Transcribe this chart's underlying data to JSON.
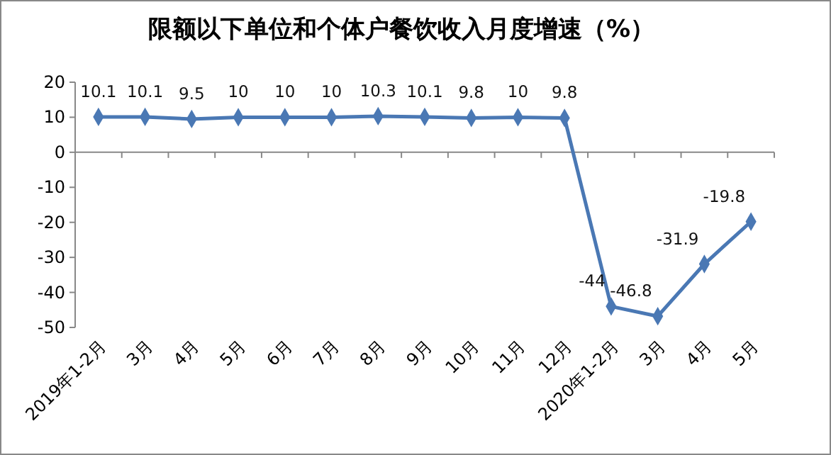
{
  "chart_data": {
    "type": "line",
    "title": "限额以下单位和个体户餐饮收入月度增速（%）",
    "categories": [
      "2019年1-2月",
      "3月",
      "4月",
      "5月",
      "6月",
      "7月",
      "8月",
      "9月",
      "10月",
      "11月",
      "12月",
      "2020年1-2月",
      "3月",
      "4月",
      "5月"
    ],
    "series": [
      {
        "color": "#4a78b4",
        "values": [
          10.1,
          10.1,
          9.5,
          10,
          10,
          10,
          10.3,
          10.1,
          9.8,
          10,
          9.8,
          -44,
          -46.8,
          -31.9,
          -19.8
        ]
      }
    ],
    "ylim": [
      -50,
      20
    ],
    "yticks": [
      -50,
      -40,
      -30,
      -20,
      -10,
      0,
      10,
      20
    ],
    "marker": "diamond",
    "data_labels": true
  }
}
